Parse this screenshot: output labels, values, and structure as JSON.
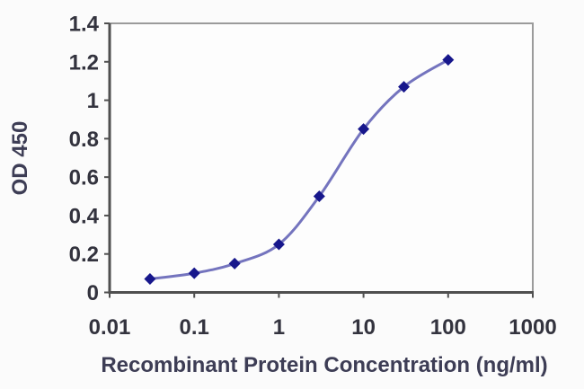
{
  "chart_data": {
    "type": "line",
    "title": "",
    "xlabel": "Recombinant Protein Concentration (ng/ml)",
    "ylabel": "OD 450",
    "x_scale": "log",
    "xlim": [
      0.01,
      1000
    ],
    "ylim": [
      0,
      1.4
    ],
    "x_ticks": [
      0.01,
      0.1,
      1,
      10,
      100,
      1000
    ],
    "x_tick_labels": [
      "0.01",
      "0.1",
      "1",
      "10",
      "100",
      "1000"
    ],
    "y_ticks": [
      0,
      0.2,
      0.4,
      0.6,
      0.8,
      1,
      1.2,
      1.4
    ],
    "y_tick_labels": [
      "0",
      "0.2",
      "0.4",
      "0.6",
      "0.8",
      "1",
      "1.2",
      "1.4"
    ],
    "grid": "horizontal",
    "legend": "none",
    "series": [
      {
        "name": "OD 450",
        "marker": "diamond",
        "line_style": "smooth",
        "x": [
          0.03,
          0.1,
          0.3,
          1,
          3,
          10,
          30,
          100
        ],
        "y": [
          0.07,
          0.1,
          0.15,
          0.25,
          0.5,
          0.85,
          1.07,
          1.21
        ]
      }
    ],
    "colors": {
      "line": "#7474be",
      "marker": "#17178c",
      "grid": "#4f4f4f",
      "axis": "#4f4f4f",
      "border": "#9b9b9b",
      "tick_text": "#33333e",
      "label_text": "#3d3d55",
      "background": "#fbfbfb"
    }
  }
}
